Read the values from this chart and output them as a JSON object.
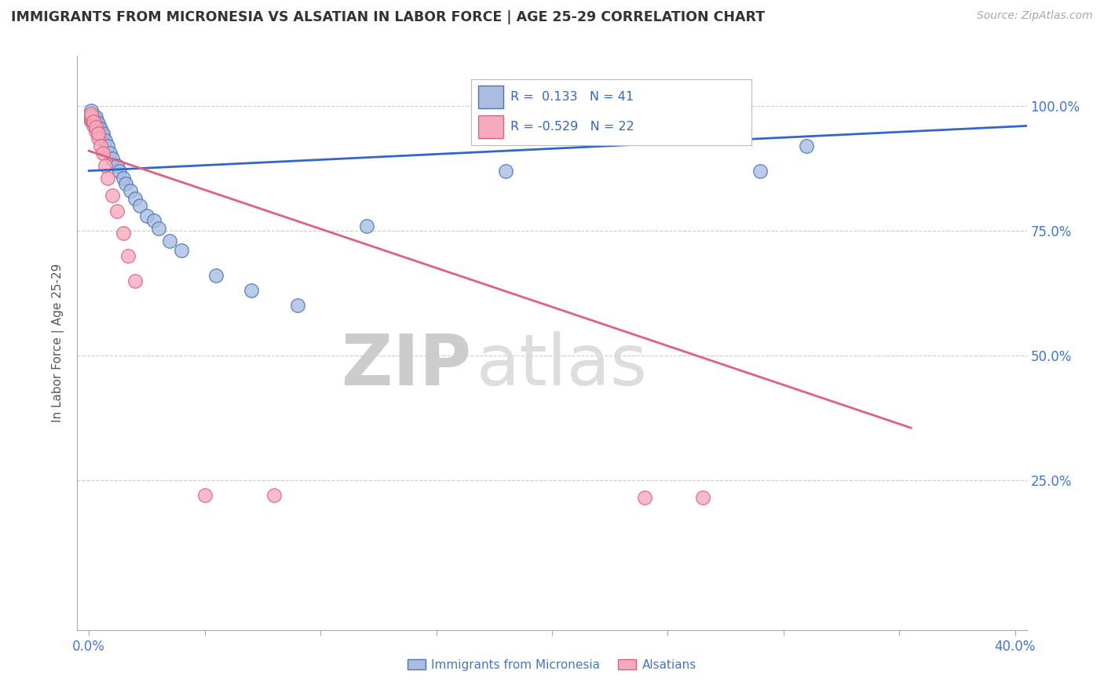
{
  "title": "IMMIGRANTS FROM MICRONESIA VS ALSATIAN IN LABOR FORCE | AGE 25-29 CORRELATION CHART",
  "source": "Source: ZipAtlas.com",
  "ylabel": "In Labor Force | Age 25-29",
  "xlim": [
    -0.005,
    0.405
  ],
  "ylim": [
    -0.05,
    1.1
  ],
  "xtick_positions": [
    0.0,
    0.05,
    0.1,
    0.15,
    0.2,
    0.25,
    0.3,
    0.35,
    0.4
  ],
  "xticklabels": [
    "0.0%",
    "",
    "",
    "",
    "",
    "",
    "",
    "",
    "40.0%"
  ],
  "ytick_positions": [
    0.25,
    0.5,
    0.75,
    1.0
  ],
  "ytick_labels": [
    "25.0%",
    "50.0%",
    "75.0%",
    "100.0%"
  ],
  "blue_R": "0.133",
  "blue_N": "41",
  "pink_R": "-0.529",
  "pink_N": "22",
  "blue_color": "#AABDE0",
  "pink_color": "#F5AABD",
  "blue_edge_color": "#4477BB",
  "pink_edge_color": "#E06080",
  "blue_line_color": "#3366CC",
  "pink_line_color": "#E06080",
  "watermark_zip": "ZIP",
  "watermark_atlas": "atlas",
  "legend_blue_label": "Immigrants from Micronesia",
  "legend_pink_label": "Alsatians",
  "blue_x": [
    0.001,
    0.001,
    0.001,
    0.002,
    0.002,
    0.002,
    0.003,
    0.003,
    0.003,
    0.003,
    0.003,
    0.004,
    0.004,
    0.004,
    0.005,
    0.005,
    0.006,
    0.006,
    0.007,
    0.008,
    0.009,
    0.01,
    0.012,
    0.013,
    0.015,
    0.016,
    0.018,
    0.02,
    0.022,
    0.025,
    0.028,
    0.03,
    0.035,
    0.04,
    0.055,
    0.07,
    0.09,
    0.12,
    0.18,
    0.29,
    0.31
  ],
  "blue_y": [
    0.97,
    0.98,
    0.99,
    0.97,
    0.975,
    0.98,
    0.96,
    0.965,
    0.968,
    0.972,
    0.978,
    0.955,
    0.96,
    0.965,
    0.95,
    0.955,
    0.94,
    0.945,
    0.93,
    0.92,
    0.905,
    0.895,
    0.88,
    0.87,
    0.855,
    0.845,
    0.83,
    0.815,
    0.8,
    0.78,
    0.77,
    0.755,
    0.73,
    0.71,
    0.66,
    0.63,
    0.6,
    0.76,
    0.87,
    0.87,
    0.92
  ],
  "pink_x": [
    0.001,
    0.001,
    0.001,
    0.002,
    0.002,
    0.003,
    0.003,
    0.004,
    0.004,
    0.005,
    0.006,
    0.007,
    0.008,
    0.01,
    0.012,
    0.015,
    0.017,
    0.02,
    0.05,
    0.08,
    0.24,
    0.265
  ],
  "pink_y": [
    0.975,
    0.98,
    0.985,
    0.96,
    0.968,
    0.95,
    0.958,
    0.935,
    0.945,
    0.92,
    0.905,
    0.88,
    0.855,
    0.82,
    0.79,
    0.745,
    0.7,
    0.65,
    0.22,
    0.22,
    0.215,
    0.215
  ],
  "blue_line_x0": 0.0,
  "blue_line_x1": 0.405,
  "blue_line_y0": 0.87,
  "blue_line_y1": 0.96,
  "pink_line_x0": 0.0,
  "pink_line_x1": 0.355,
  "pink_line_y0": 0.91,
  "pink_line_y1": 0.355
}
